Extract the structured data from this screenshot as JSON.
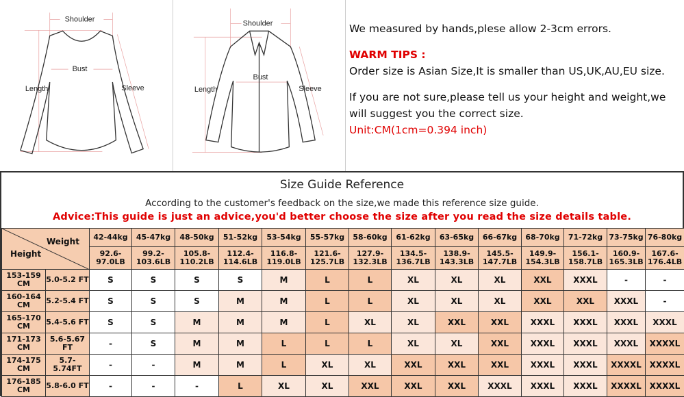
{
  "diagram1": {
    "shoulder": "Shoulder",
    "bust": "Bust",
    "length": "Length",
    "sleeve": "Sleeve"
  },
  "diagram2": {
    "shoulder": "Shoulder",
    "bust": "Bust",
    "length": "Length",
    "sleeve": "Sleeve"
  },
  "notes": {
    "line1": "We measured by hands,plese allow 2-3cm errors.",
    "warm_title": "WARM TIPS :",
    "line2": "Order size is Asian Size,It is smaller than US,UK,AU,EU size.",
    "line3": "If you are not sure,please tell us your height and weight,we will suggest you the correct size.",
    "unit": "Unit:CM(1cm=0.394 inch)"
  },
  "guide": {
    "title": "Size Guide Reference",
    "subtitle": "According to the customer's feedback on the size,we made this reference size guide.",
    "advice": "Advice:This guide is just an advice,you'd better choose the size after you read the size details table.",
    "weight_label": "Weight",
    "height_label": "Height",
    "kg": [
      "42-44kg",
      "45-47kg",
      "48-50kg",
      "51-52kg",
      "53-54kg",
      "55-57kg",
      "58-60kg",
      "61-62kg",
      "63-65kg",
      "66-67kg",
      "68-70kg",
      "71-72kg",
      "73-75kg",
      "76-80kg"
    ],
    "lb": [
      "92.6-97.0LB",
      "99.2-103.6LB",
      "105.8-110.2LB",
      "112.4-114.6LB",
      "116.8-119.0LB",
      "121.6-125.7LB",
      "127.9-132.3LB",
      "134.5-136.7LB",
      "138.9-143.3LB",
      "145.5-147.7LB",
      "149.9-154.3LB",
      "156.1-158.7LB",
      "160.9-165.3LB",
      "167.6-176.4LB"
    ],
    "rows": [
      {
        "cm": "153-159 CM",
        "ft": "5.0-5.2 FT",
        "sizes": [
          "S",
          "S",
          "S",
          "S",
          "M",
          "L",
          "L",
          "XL",
          "XL",
          "XL",
          "XXL",
          "XXXL",
          "-",
          "-"
        ]
      },
      {
        "cm": "160-164 CM",
        "ft": "5.2-5.4 FT",
        "sizes": [
          "S",
          "S",
          "S",
          "M",
          "M",
          "L",
          "L",
          "XL",
          "XL",
          "XL",
          "XXL",
          "XXL",
          "XXXL",
          "-"
        ]
      },
      {
        "cm": "165-170 CM",
        "ft": "5.4-5.6 FT",
        "sizes": [
          "S",
          "S",
          "M",
          "M",
          "M",
          "L",
          "XL",
          "XL",
          "XXL",
          "XXL",
          "XXXL",
          "XXXL",
          "XXXL",
          "XXXL"
        ]
      },
      {
        "cm": "171-173 CM",
        "ft": "5.6-5.67 FT",
        "sizes": [
          "-",
          "S",
          "M",
          "M",
          "L",
          "L",
          "L",
          "XL",
          "XL",
          "XXL",
          "XXXL",
          "XXXL",
          "XXXL",
          "XXXXL"
        ]
      },
      {
        "cm": "174-175 CM",
        "ft": "5.7-5.74FT",
        "sizes": [
          "-",
          "-",
          "M",
          "M",
          "L",
          "XL",
          "XL",
          "XXL",
          "XXL",
          "XXL",
          "XXXL",
          "XXXL",
          "XXXXL",
          "XXXXL"
        ]
      },
      {
        "cm": "176-185 CM",
        "ft": "5.8-6.0 FT",
        "sizes": [
          "-",
          "-",
          "-",
          "L",
          "XL",
          "XL",
          "XXL",
          "XXL",
          "XXL",
          "XXXL",
          "XXXL",
          "XXXL",
          "XXXXL",
          "XXXXL"
        ]
      }
    ]
  },
  "colors": {
    "header": "#f6cdb0",
    "light": "#fbe6da",
    "dark": "#f6c7a8",
    "white": "#ffffff",
    "warning": "#e00000"
  }
}
